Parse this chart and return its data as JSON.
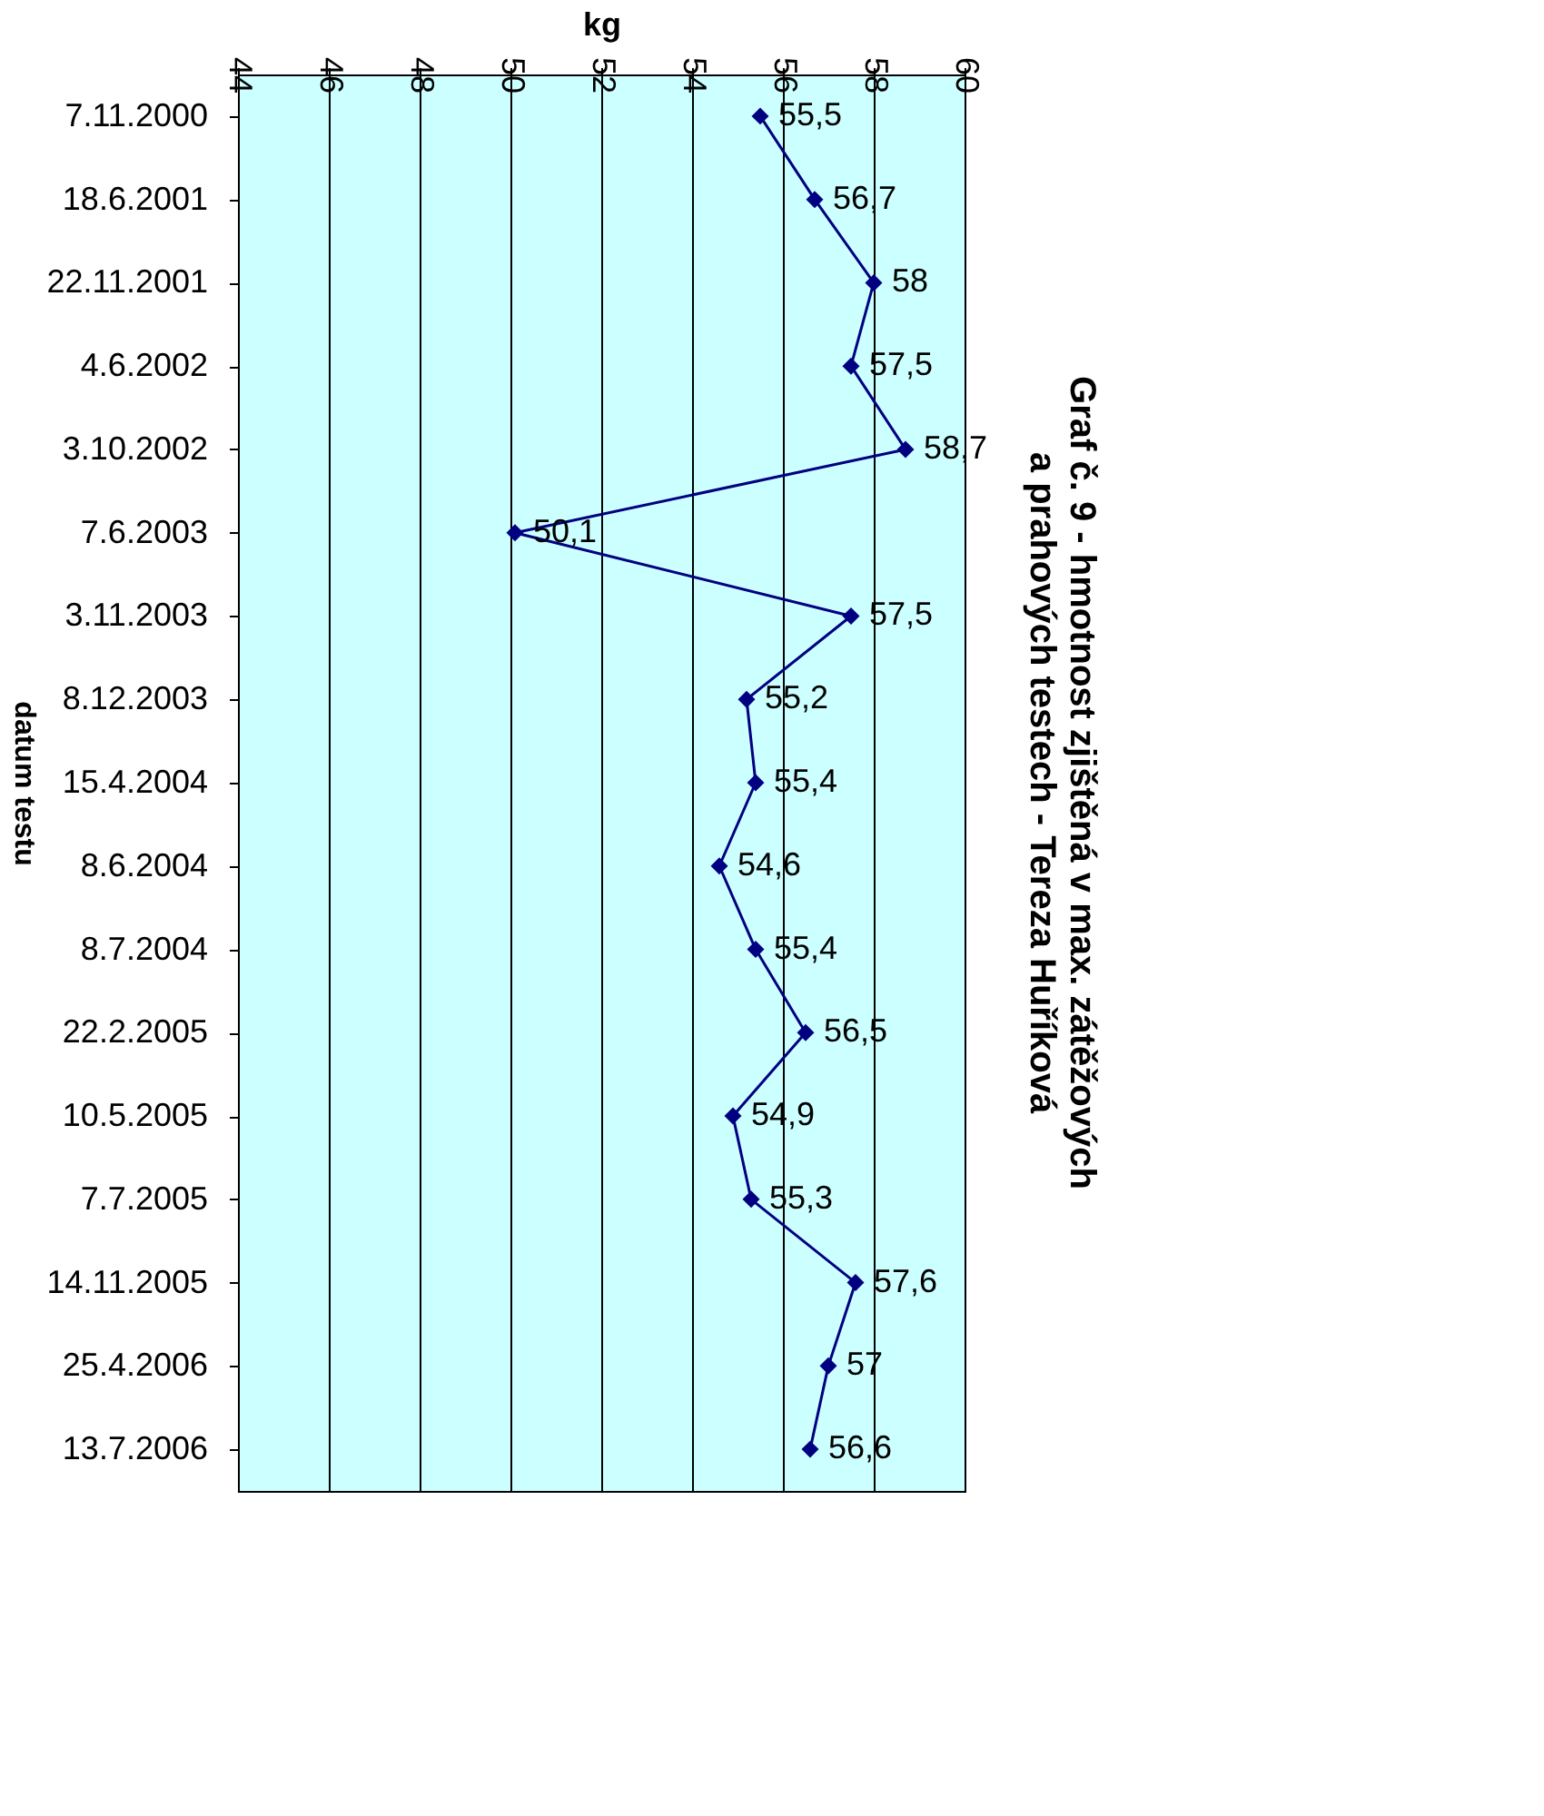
{
  "chart_data": {
    "type": "line",
    "orientation": "horizontal",
    "title": [
      "Graf č. 9 - hmotnost zjištěná v max. zátěžových",
      "a prahových testech - Tereza Huříková"
    ],
    "xlabel": "kg",
    "ylabel": "datum testu",
    "categories": [
      "7.11.2000",
      "18.6.2001",
      "22.11.2001",
      "4.6.2002",
      "3.10.2002",
      "7.6.2003",
      "3.11.2003",
      "8.12.2003",
      "15.4.2004",
      "8.6.2004",
      "8.7.2004",
      "22.2.2005",
      "10.5.2005",
      "7.7.2005",
      "14.11.2005",
      "25.4.2006",
      "13.7.2006"
    ],
    "series": [
      {
        "color": "#000080",
        "values": [
          55.5,
          56.7,
          58,
          57.5,
          58.7,
          50.1,
          57.5,
          55.2,
          55.4,
          54.6,
          55.4,
          56.5,
          54.9,
          55.3,
          57.6,
          57,
          56.6
        ],
        "value_labels": [
          "55,5",
          "56,7",
          "58",
          "57,5",
          "58,7",
          "50,1",
          "57,5",
          "55,2",
          "55,4",
          "54,6",
          "55,4",
          "56,5",
          "54,9",
          "55,3",
          "57,6",
          "57",
          "56,6"
        ]
      }
    ],
    "xlim": [
      44,
      60
    ],
    "xticks": [
      44,
      46,
      48,
      50,
      52,
      54,
      56,
      58,
      60
    ],
    "grid": "x",
    "marker": "diamond",
    "line_style": "solid"
  }
}
